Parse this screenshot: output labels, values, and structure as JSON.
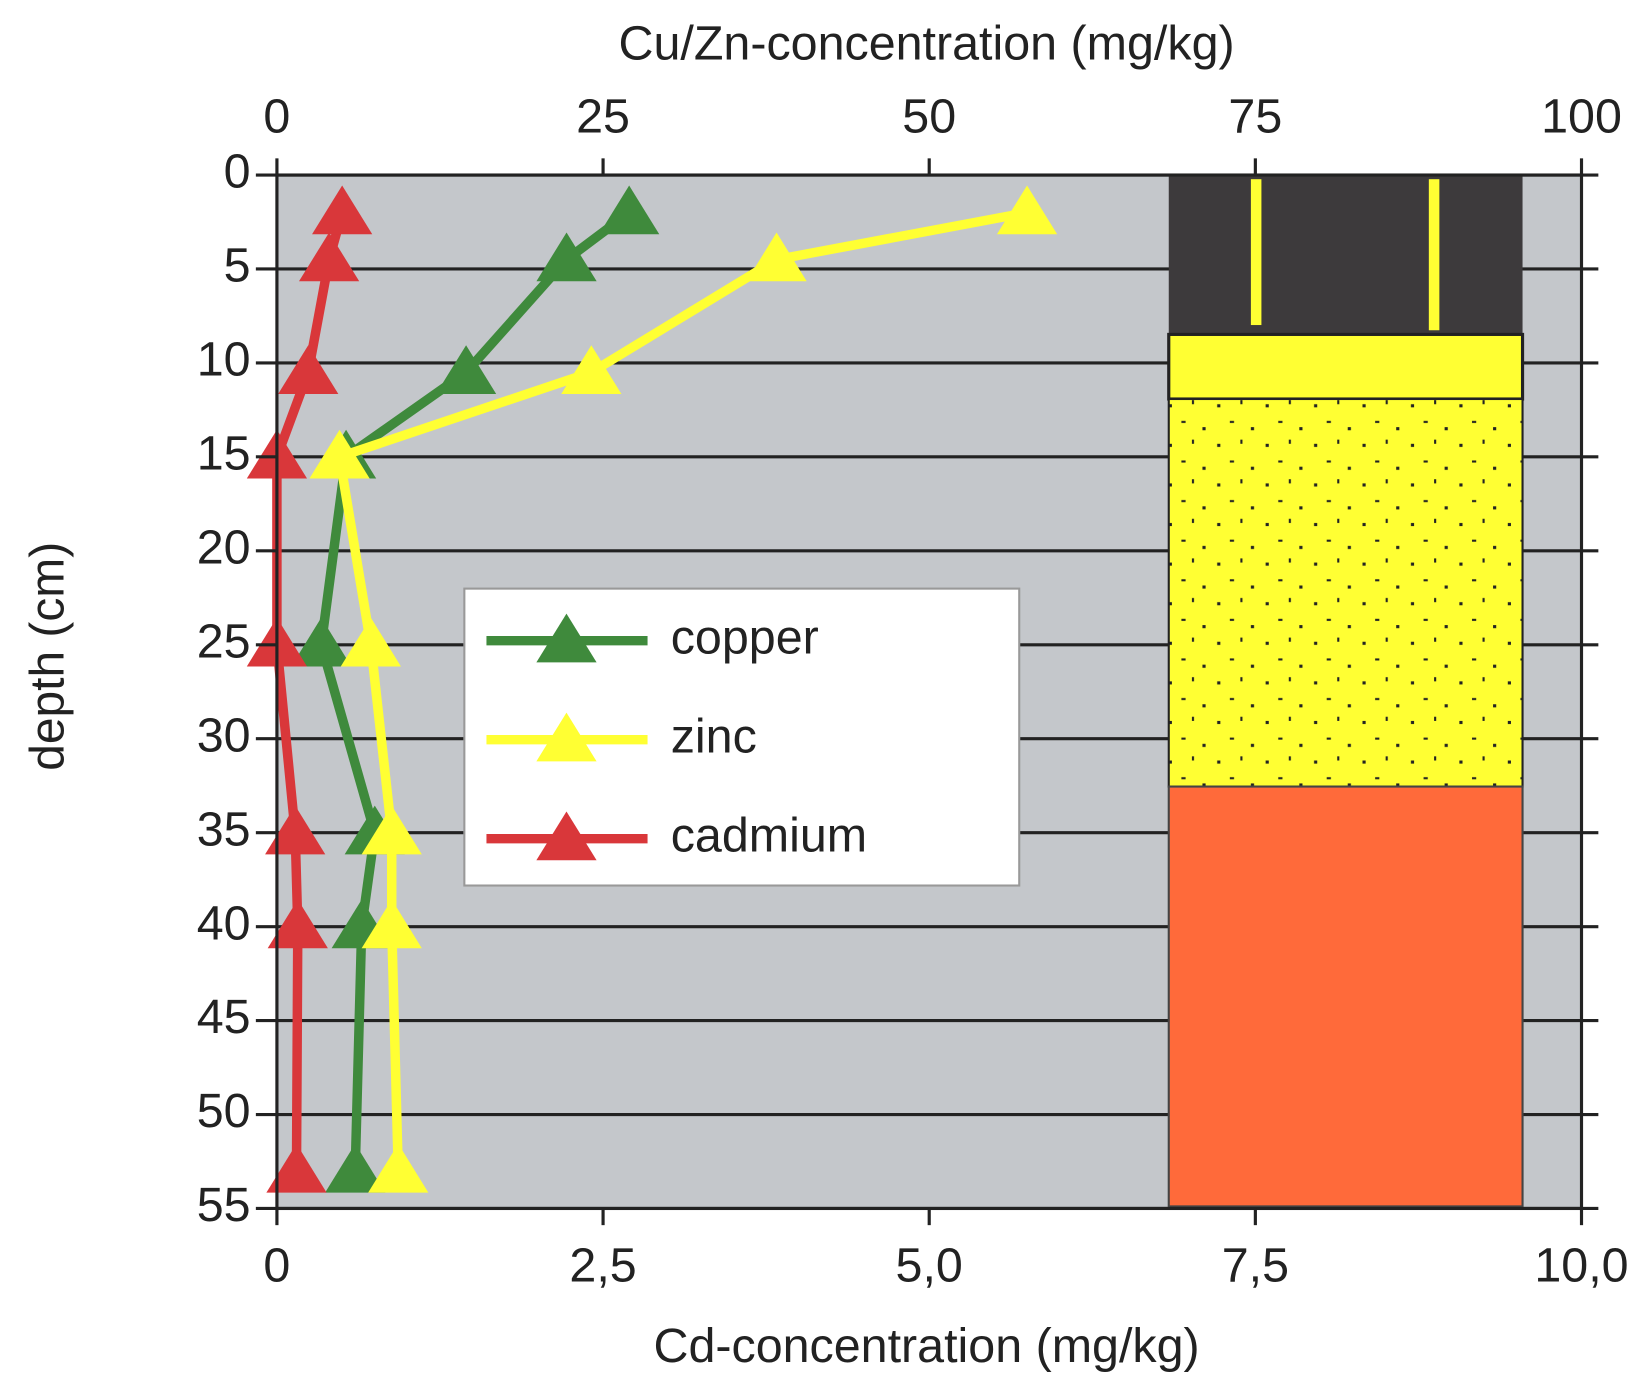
{
  "chart_data": {
    "type": "line",
    "x_label": "Cd-concentration (mg/kg)",
    "x2_label": "Cu/Zn-concentration   (mg/kg)",
    "y_label": "depth (cm)",
    "depths": [
      2,
      4.5,
      10.5,
      15,
      25,
      35,
      40,
      53
    ],
    "series": [
      {
        "name": "copper",
        "color": "#3f8a3c",
        "axis": "x2",
        "values": [
          27.0,
          22.2,
          14.5,
          5.3,
          3.4,
          7.5,
          6.5,
          6.0
        ]
      },
      {
        "name": "zinc",
        "color": "#ffff33",
        "axis": "x2",
        "values": [
          57.5,
          38.3,
          24.1,
          4.8,
          7.2,
          8.8,
          8.8,
          9.3
        ]
      },
      {
        "name": "cadmium",
        "color": "#d9373a",
        "axis": "x",
        "values": [
          0.5,
          0.4,
          0.24,
          0,
          0,
          0.14,
          0.16,
          0.15
        ]
      }
    ],
    "xlim": [
      0,
      10
    ],
    "xticks": [
      0,
      {
        "value": 2.5,
        "label": "2,5"
      },
      {
        "value": 5,
        "label": "5,0"
      },
      {
        "value": 7.5,
        "label": "7,5"
      },
      {
        "value": 10,
        "label": "10,0"
      }
    ],
    "x2lim": [
      0,
      100
    ],
    "x2ticks": [
      0,
      25,
      50,
      75,
      100
    ],
    "ylim": [
      0,
      55
    ],
    "y_inverted": true,
    "yticks": [
      0,
      5,
      10,
      15,
      20,
      25,
      30,
      35,
      40,
      45,
      50,
      55
    ],
    "grid": true,
    "legend": "center-left"
  }
}
